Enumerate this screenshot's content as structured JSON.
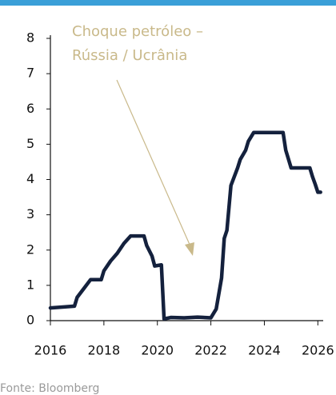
{
  "chart_data": {
    "type": "line",
    "annotation": [
      "Choque petróleo –",
      "Rússia / Ucrânia"
    ],
    "source": "Fonte: Bloomberg",
    "x": [
      2016.0,
      2016.9,
      2017.0,
      2017.25,
      2017.5,
      2017.9,
      2018.0,
      2018.25,
      2018.5,
      2018.75,
      2019.0,
      2019.5,
      2019.6,
      2019.8,
      2019.9,
      2020.15,
      2020.25,
      2020.5,
      2021.0,
      2021.5,
      2022.0,
      2022.2,
      2022.4,
      2022.5,
      2022.6,
      2022.75,
      2023.0,
      2023.1,
      2023.3,
      2023.4,
      2023.6,
      2024.7,
      2024.8,
      2024.9,
      2025.0,
      2025.7,
      2025.8,
      2025.9,
      2026.0,
      2026.1
    ],
    "values": [
      0.36,
      0.41,
      0.66,
      0.91,
      1.16,
      1.16,
      1.41,
      1.69,
      1.91,
      2.19,
      2.4,
      2.4,
      2.13,
      1.83,
      1.55,
      1.58,
      0.05,
      0.09,
      0.08,
      0.1,
      0.08,
      0.33,
      1.21,
      2.33,
      2.56,
      3.83,
      4.33,
      4.57,
      4.83,
      5.08,
      5.33,
      5.33,
      4.83,
      4.58,
      4.33,
      4.33,
      4.08,
      3.87,
      3.64,
      3.64
    ],
    "color": "#14213d",
    "xlim": [
      2016,
      2026.2
    ],
    "xticks": [
      2016,
      2018,
      2020,
      2022,
      2024,
      2026
    ],
    "ylim": [
      0,
      8
    ],
    "yticks": [
      0,
      1,
      2,
      3,
      4,
      5,
      6,
      7,
      8
    ]
  }
}
